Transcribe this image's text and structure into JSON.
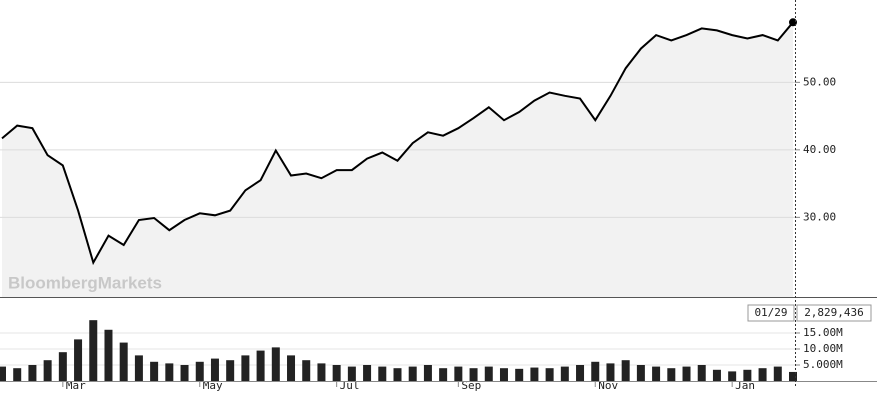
{
  "chart_data": [
    {
      "type": "line",
      "watermark": "BloombergMarkets",
      "color": "#000000",
      "area_color": "#f2f2f2",
      "grid": true,
      "ylim": [
        18.2,
        62.2
      ],
      "yticks": [
        {
          "value": 30,
          "label": "30.00"
        },
        {
          "value": 40,
          "label": "40.00"
        },
        {
          "value": 50,
          "label": "50.00"
        }
      ],
      "values": [
        41.7,
        43.6,
        43.2,
        39.2,
        37.7,
        31,
        23.3,
        27.3,
        25.9,
        29.6,
        29.9,
        28.1,
        29.6,
        30.6,
        30.3,
        31,
        34,
        35.5,
        39.9,
        36.2,
        36.5,
        35.8,
        37,
        37,
        38.7,
        39.6,
        38.4,
        41,
        42.6,
        42.1,
        43.2,
        44.7,
        46.3,
        44.4,
        45.6,
        47.3,
        48.5,
        48,
        47.6,
        44.4,
        48,
        52.1,
        55,
        57,
        56.2,
        57,
        58,
        57.7,
        57,
        56.5,
        57,
        56.2,
        58.9
      ]
    },
    {
      "type": "bar",
      "color": "#222222",
      "cursor_date": "01/29",
      "cursor_value": "2,829,436",
      "ylim": [
        0,
        25300000
      ],
      "yticks": [
        {
          "value": 5000000,
          "label": "5.000M"
        },
        {
          "value": 10000000,
          "label": "10.00M"
        },
        {
          "value": 15000000,
          "label": "15.00M"
        }
      ],
      "categories": [
        null,
        null,
        null,
        null,
        "Mar",
        null,
        null,
        null,
        null,
        null,
        null,
        null,
        null,
        "May",
        null,
        null,
        null,
        null,
        null,
        null,
        null,
        null,
        "Jul",
        null,
        null,
        null,
        null,
        null,
        null,
        null,
        "Sep",
        null,
        null,
        null,
        null,
        null,
        null,
        null,
        null,
        "Nov",
        null,
        null,
        null,
        null,
        null,
        null,
        null,
        null,
        "Jan",
        null,
        null,
        null,
        null
      ],
      "values": [
        4500000,
        4000000,
        5000000,
        6500000,
        9000000,
        13000000,
        19000000,
        16000000,
        12000000,
        8000000,
        6000000,
        5500000,
        5000000,
        6000000,
        7000000,
        6500000,
        8000000,
        9500000,
        10500000,
        8000000,
        6500000,
        5500000,
        5000000,
        4500000,
        5000000,
        4500000,
        4000000,
        4500000,
        5000000,
        4000000,
        4500000,
        4000000,
        4500000,
        4000000,
        3800000,
        4200000,
        4000000,
        4500000,
        5000000,
        6000000,
        5500000,
        6500000,
        5000000,
        4500000,
        4000000,
        4500000,
        5000000,
        3500000,
        3000000,
        3500000,
        4000000,
        4500000,
        2829436
      ]
    }
  ]
}
